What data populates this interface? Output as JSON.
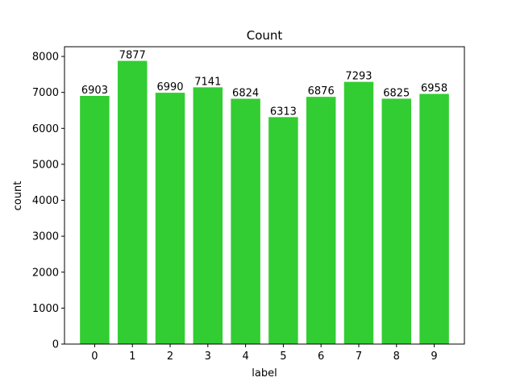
{
  "chart_data": {
    "type": "bar",
    "title": "Count",
    "xlabel": "label",
    "ylabel": "count",
    "categories": [
      "0",
      "1",
      "2",
      "3",
      "4",
      "5",
      "6",
      "7",
      "8",
      "9"
    ],
    "values": [
      6903,
      7877,
      6990,
      7141,
      6824,
      6313,
      6876,
      7293,
      6825,
      6958
    ],
    "data_labels": [
      "6903",
      "7877",
      "6990",
      "7141",
      "6824",
      "6313",
      "6876",
      "7293",
      "6825",
      "6958"
    ],
    "ylim": [
      0,
      8270
    ],
    "yticks": [
      0,
      1000,
      2000,
      3000,
      4000,
      5000,
      6000,
      7000,
      8000
    ],
    "ytick_labels": [
      "0",
      "1000",
      "2000",
      "3000",
      "4000",
      "5000",
      "6000",
      "7000",
      "8000"
    ],
    "grid": false,
    "legend": "none",
    "bar_color": "#32cd32"
  }
}
